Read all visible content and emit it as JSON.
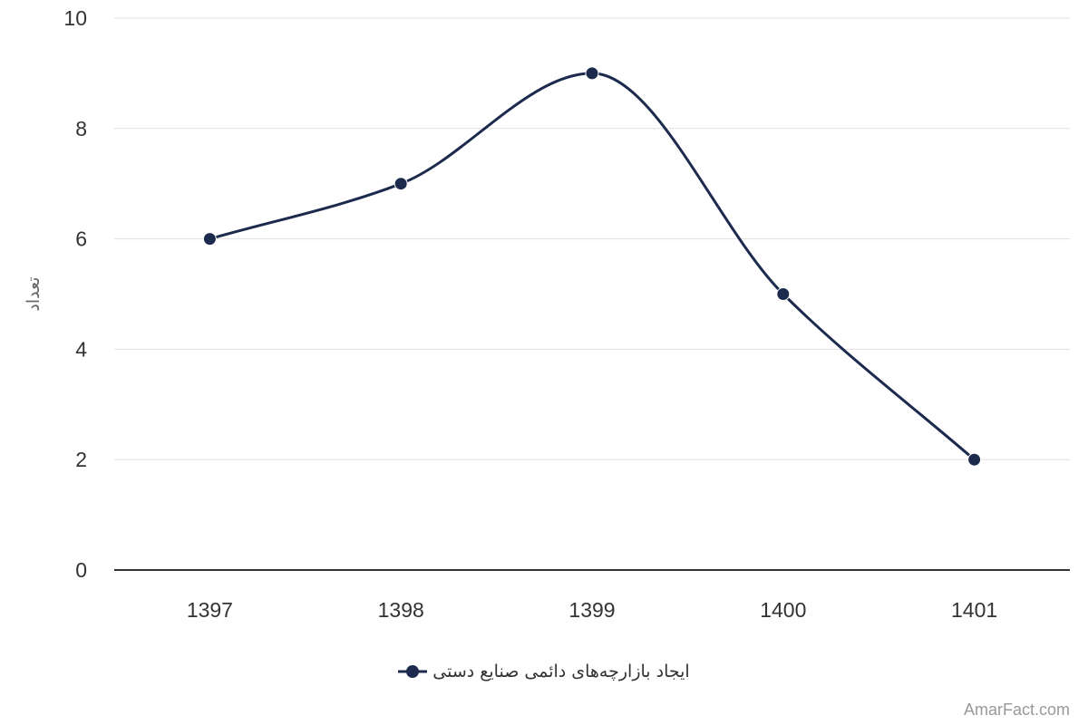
{
  "chart_data": {
    "type": "line",
    "categories": [
      "1397",
      "1398",
      "1399",
      "1400",
      "1401"
    ],
    "series": [
      {
        "name": "ایجاد بازارچه‌های دائمی صنایع دستی",
        "values": [
          6,
          7,
          9,
          5,
          2
        ],
        "color": "#1c2a4d"
      }
    ],
    "xlabel": "",
    "ylabel": "تعداد",
    "ylim": [
      0,
      10
    ],
    "yticks": [
      0,
      2,
      4,
      6,
      8,
      10
    ],
    "grid": true,
    "legend": "bottom-center",
    "smooth": true
  },
  "watermark": "AmarFact.com"
}
